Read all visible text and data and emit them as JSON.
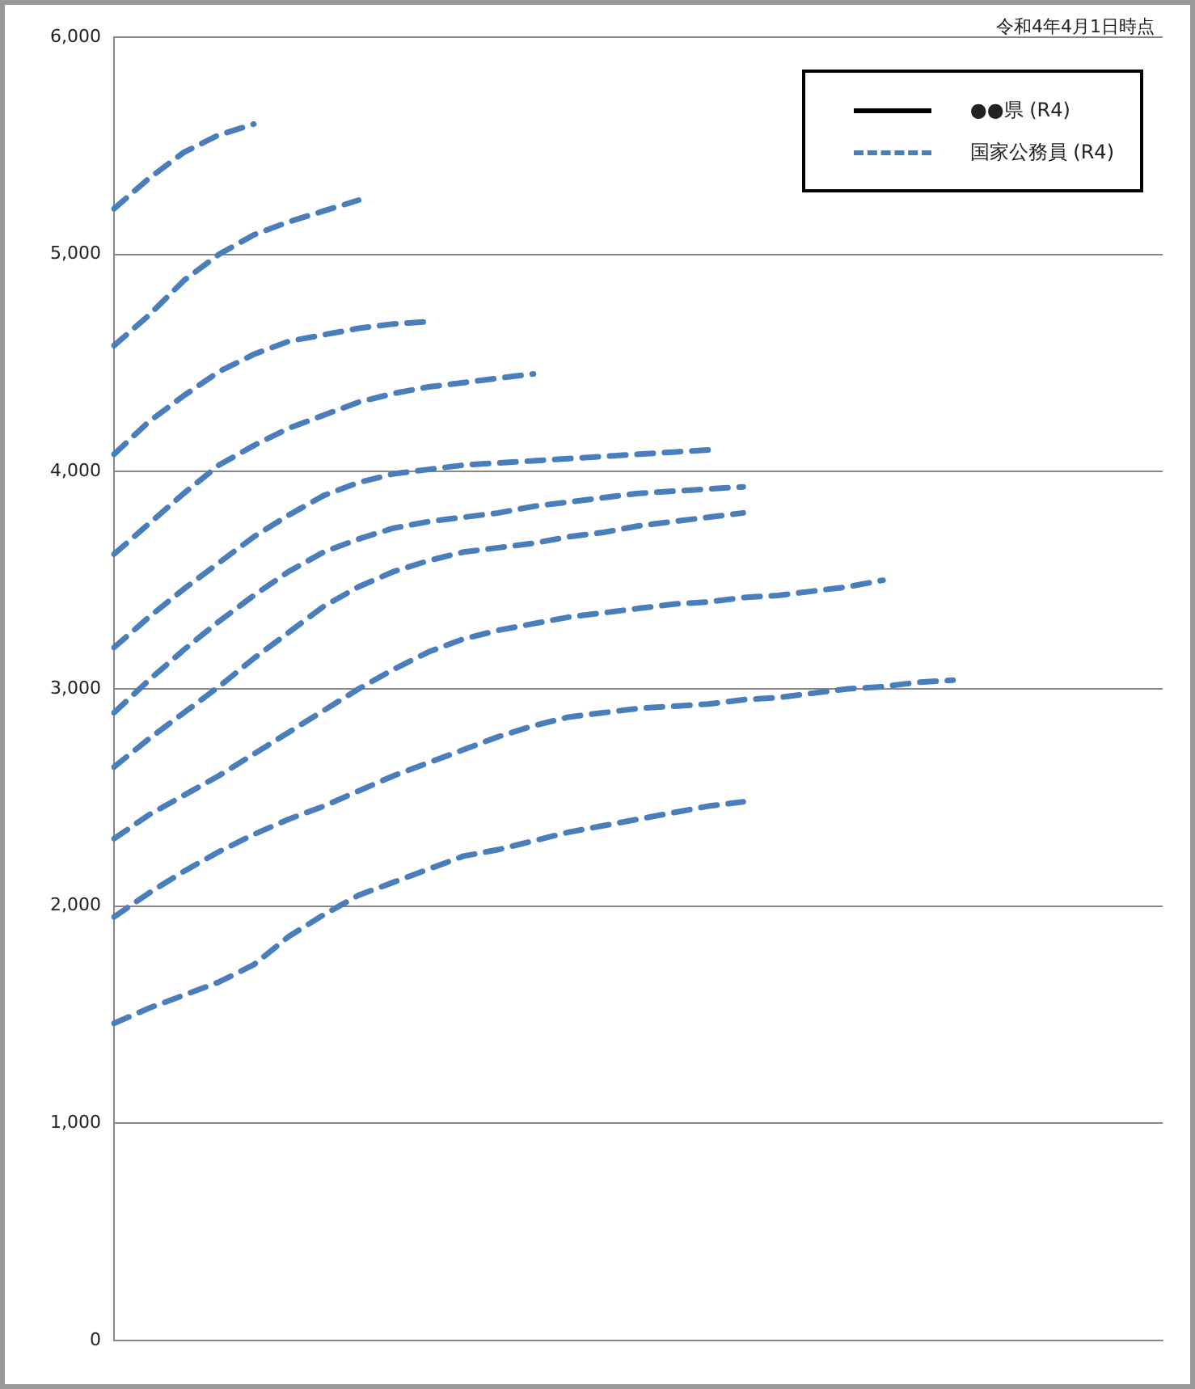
{
  "chart_data": {
    "type": "line",
    "annotations": [
      "令和4年4月1日時点"
    ],
    "categories": [
      null,
      null,
      null,
      null,
      null,
      null,
      null,
      null,
      null,
      null,
      null,
      null,
      null,
      null,
      null,
      null,
      null,
      null,
      null,
      null,
      null,
      null,
      null,
      null,
      null,
      null,
      null,
      null,
      null,
      null,
      null
    ],
    "ylim": [
      0,
      6000
    ],
    "yticks": [
      {
        "value": 0,
        "label": "0"
      },
      {
        "value": 1000,
        "label": "1,000"
      },
      {
        "value": 2000,
        "label": "2,000"
      },
      {
        "value": 3000,
        "label": "3,000"
      },
      {
        "value": 4000,
        "label": "4,000"
      },
      {
        "value": 5000,
        "label": "5,000"
      },
      {
        "value": 6000,
        "label": "6,000"
      }
    ],
    "grid": "y",
    "tick_labels": "y",
    "legend": "top right",
    "marker": "none",
    "series": [
      {
        "name": "●●県 (R4)",
        "color": "#000000",
        "line_style": "solid",
        "values": [
          null,
          null,
          null,
          null,
          null,
          null,
          null,
          null,
          null,
          null,
          null,
          null,
          null,
          null,
          null,
          null,
          null,
          null,
          null,
          null,
          null,
          null,
          null,
          null,
          null,
          null,
          null,
          null,
          null,
          null,
          null
        ]
      },
      {
        "name": "国家公務員 (R4)",
        "color": "#4a7ebb",
        "line_style": "dashed",
        "values": [
          5210,
          5350,
          5470,
          5550,
          5600,
          null,
          null,
          null,
          null,
          null,
          null,
          null,
          null,
          null,
          null,
          null,
          null,
          null,
          null,
          null,
          null,
          null,
          null,
          null,
          null,
          null,
          null,
          null,
          null,
          null,
          null
        ]
      },
      {
        "color": "#4a7ebb",
        "line_style": "dashed",
        "values": [
          4580,
          4720,
          4880,
          5000,
          5090,
          5150,
          5200,
          5250,
          null,
          null,
          null,
          null,
          null,
          null,
          null,
          null,
          null,
          null,
          null,
          null,
          null,
          null,
          null,
          null,
          null,
          null,
          null,
          null,
          null,
          null,
          null
        ]
      },
      {
        "color": "#4a7ebb",
        "line_style": "dashed",
        "values": [
          4080,
          4230,
          4350,
          4460,
          4540,
          4600,
          4630,
          4660,
          4680,
          4690,
          null,
          null,
          null,
          null,
          null,
          null,
          null,
          null,
          null,
          null,
          null,
          null,
          null,
          null,
          null,
          null,
          null,
          null,
          null,
          null,
          null
        ]
      },
      {
        "color": "#4a7ebb",
        "line_style": "dashed",
        "values": [
          3620,
          3760,
          3900,
          4030,
          4120,
          4200,
          4260,
          4320,
          4360,
          4390,
          4410,
          4430,
          4450,
          null,
          null,
          null,
          null,
          null,
          null,
          null,
          null,
          null,
          null,
          null,
          null,
          null,
          null,
          null,
          null,
          null,
          null
        ]
      },
      {
        "color": "#4a7ebb",
        "line_style": "dashed",
        "values": [
          3190,
          3330,
          3460,
          3580,
          3700,
          3800,
          3890,
          3950,
          3990,
          4010,
          4030,
          4040,
          4050,
          4060,
          4070,
          4080,
          4090,
          4100,
          null,
          null,
          null,
          null,
          null,
          null,
          null,
          null,
          null,
          null,
          null,
          null,
          null
        ]
      },
      {
        "color": "#4a7ebb",
        "line_style": "dashed",
        "values": [
          2890,
          3040,
          3180,
          3310,
          3430,
          3540,
          3630,
          3690,
          3740,
          3770,
          3790,
          3810,
          3840,
          3860,
          3880,
          3900,
          3910,
          3920,
          3930,
          null,
          null,
          null,
          null,
          null,
          null,
          null,
          null,
          null,
          null,
          null,
          null
        ]
      },
      {
        "color": "#4a7ebb",
        "line_style": "dashed",
        "values": [
          2640,
          2770,
          2890,
          3010,
          3140,
          3260,
          3380,
          3470,
          3540,
          3590,
          3630,
          3650,
          3670,
          3700,
          3720,
          3750,
          3770,
          3790,
          3810,
          null,
          null,
          null,
          null,
          null,
          null,
          null,
          null,
          null,
          null,
          null,
          null
        ]
      },
      {
        "color": "#4a7ebb",
        "line_style": "dashed",
        "values": [
          2310,
          2420,
          2510,
          2600,
          2700,
          2800,
          2900,
          3000,
          3090,
          3170,
          3230,
          3270,
          3300,
          3330,
          3350,
          3370,
          3390,
          3400,
          3420,
          3430,
          3450,
          3470,
          3500,
          null,
          null,
          null,
          null,
          null,
          null,
          null,
          null
        ]
      },
      {
        "color": "#4a7ebb",
        "line_style": "dashed",
        "values": [
          1950,
          2060,
          2160,
          2250,
          2330,
          2400,
          2460,
          2530,
          2600,
          2660,
          2720,
          2780,
          2830,
          2870,
          2890,
          2910,
          2920,
          2930,
          2950,
          2960,
          2980,
          3000,
          3010,
          3030,
          3040,
          null,
          null,
          null,
          null,
          null,
          null
        ]
      },
      {
        "color": "#4a7ebb",
        "line_style": "dashed",
        "values": [
          1460,
          1530,
          1590,
          1650,
          1730,
          1860,
          1960,
          2050,
          2110,
          2170,
          2230,
          2260,
          2300,
          2340,
          2370,
          2400,
          2430,
          2460,
          2480,
          null,
          null,
          null,
          null,
          null,
          null,
          null,
          null,
          null,
          null,
          null,
          null
        ]
      }
    ]
  }
}
